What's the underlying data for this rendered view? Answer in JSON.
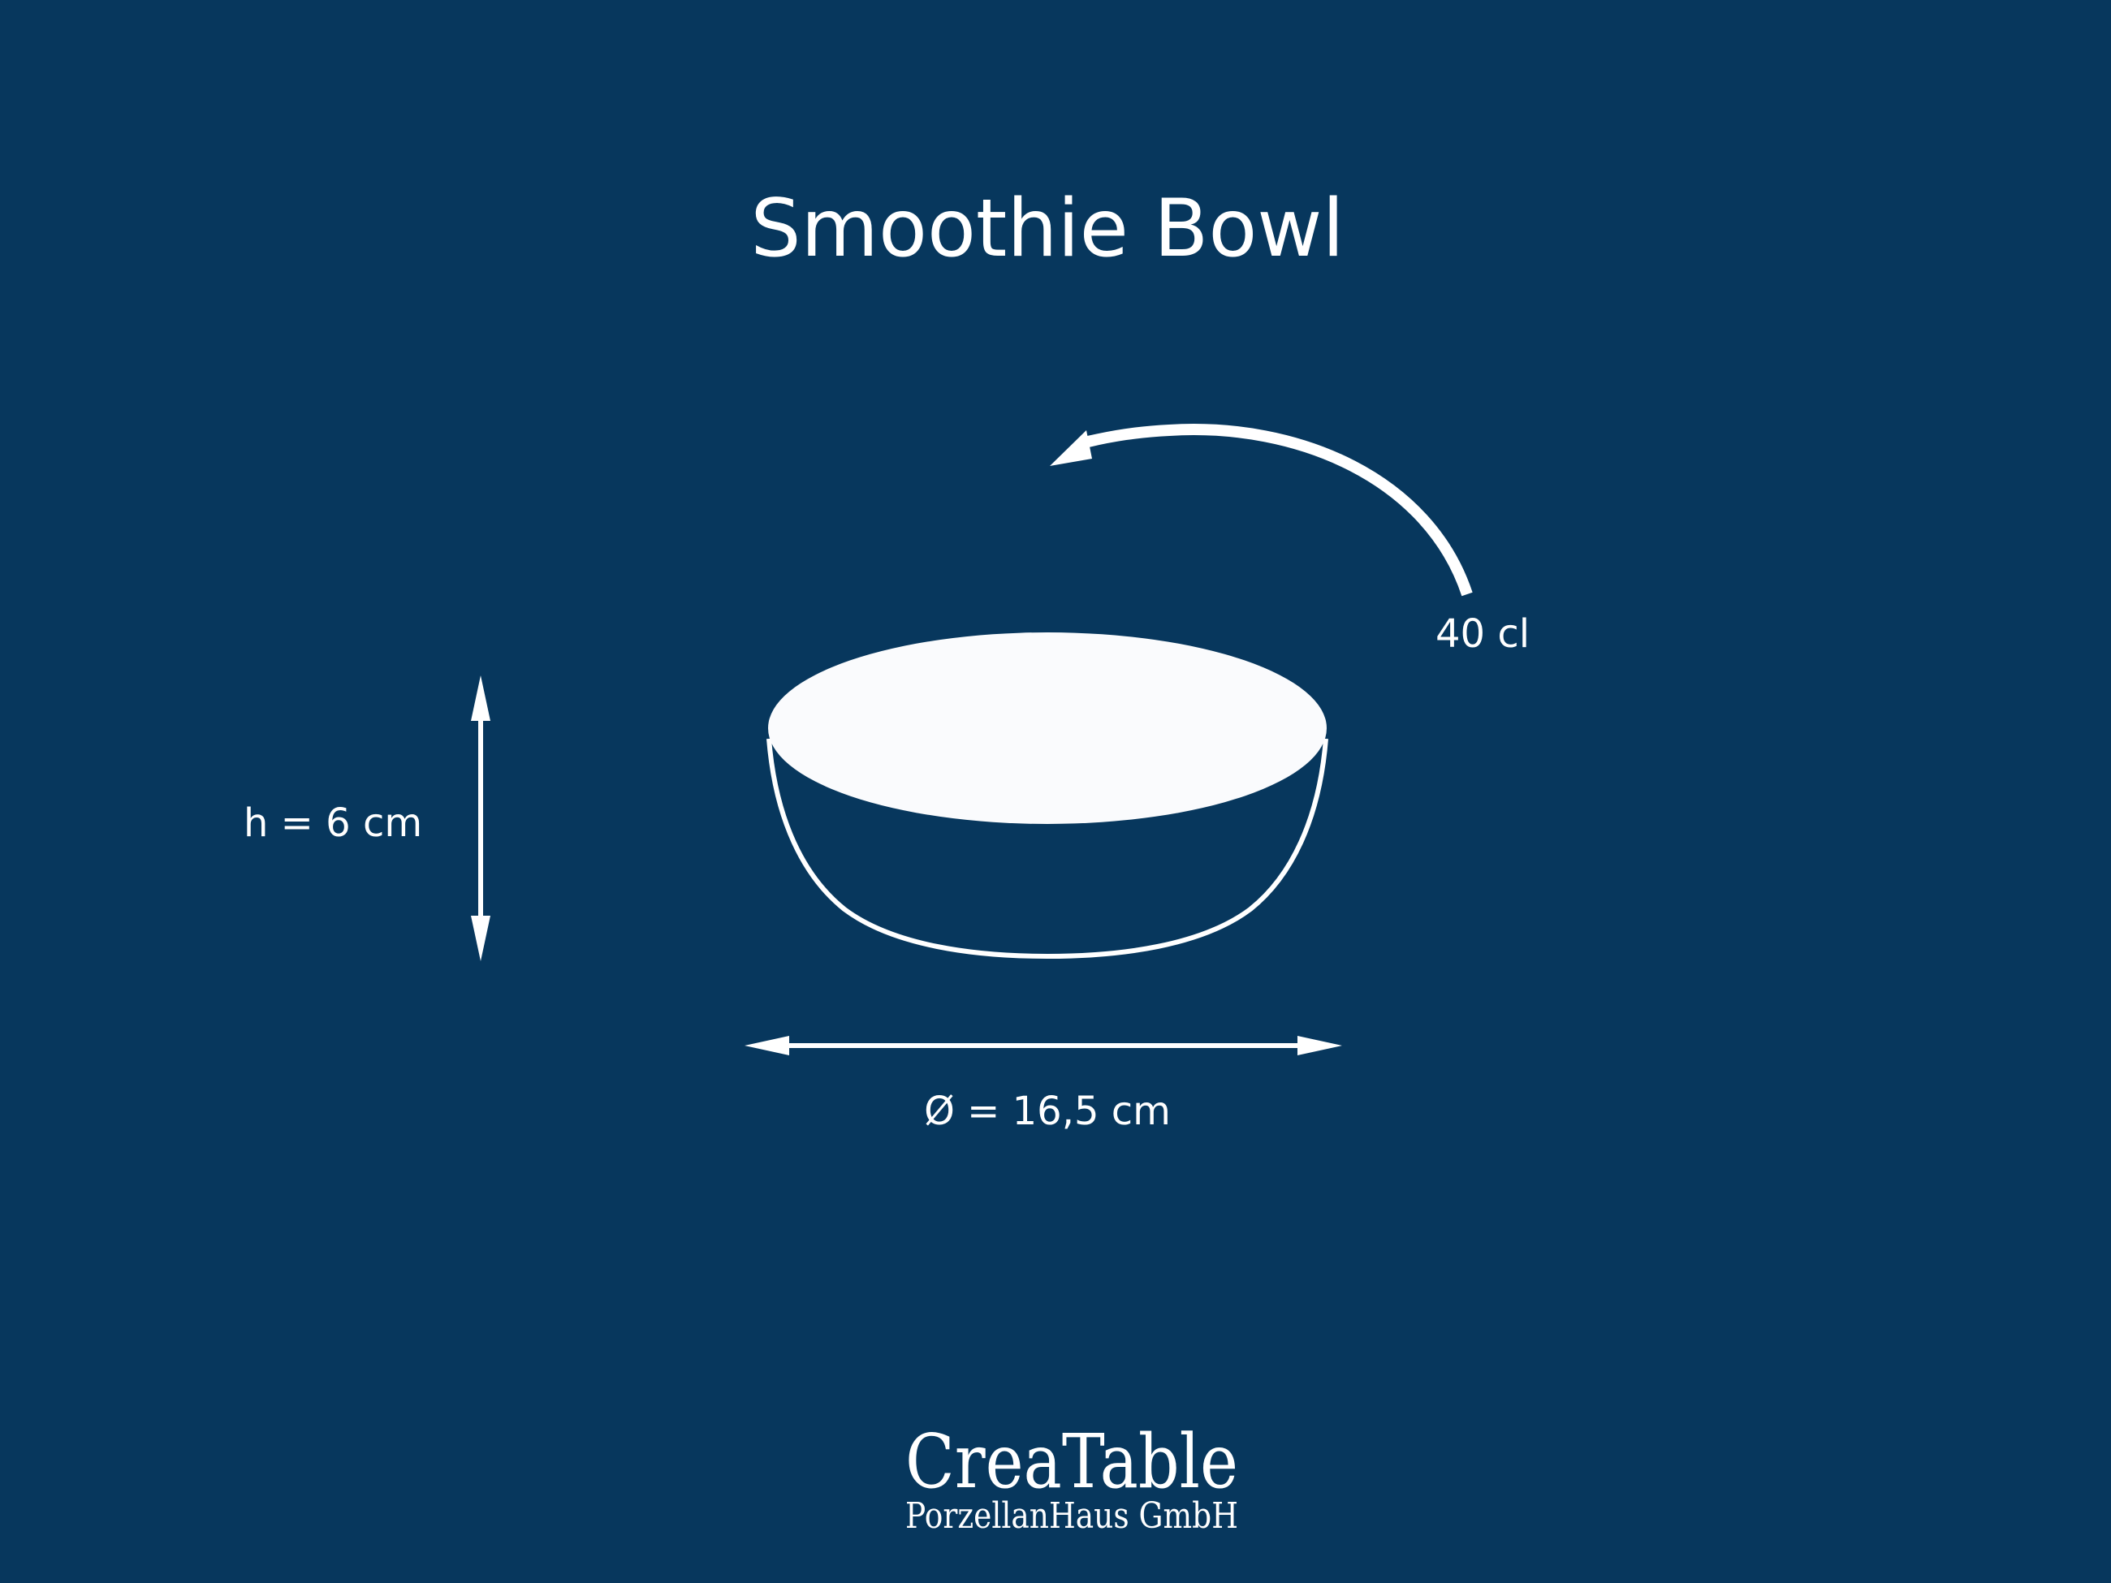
{
  "title": "Smoothie Bowl",
  "volume": "40 cl",
  "height": "h = 6 cm",
  "diameter": "Ø = 16,5 cm",
  "logo": {
    "line1": "CreaTable",
    "line2": "PorzellanHaus GmbH"
  },
  "colors": {
    "background": "#07375d",
    "foreground": "#ffffff"
  }
}
